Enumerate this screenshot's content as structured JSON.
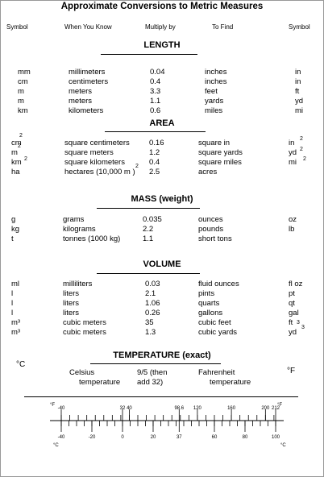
{
  "title": "Approximate Conversions to Metric Measures",
  "headers": {
    "symbol": "Symbol",
    "when_you_know": "When You Know",
    "multiply_by": "Multiply by",
    "to_find": "To Find",
    "symbol_right": "Symbol"
  },
  "sections": {
    "length": {
      "heading": "LENGTH",
      "rows": [
        {
          "sym": "mm",
          "know": "millimeters",
          "mult": "0.04",
          "find": "inches",
          "rsym": "in"
        },
        {
          "sym": "cm",
          "know": "centimeters",
          "mult": "0.4",
          "find": "inches",
          "rsym": "in"
        },
        {
          "sym": "m",
          "know": "meters",
          "mult": "3.3",
          "find": "feet",
          "rsym": "ft"
        },
        {
          "sym": "m",
          "know": "meters",
          "mult": "1.1",
          "find": "yards",
          "rsym": "yd"
        },
        {
          "sym": "km",
          "know": "kilometers",
          "mult": "0.6",
          "find": "miles",
          "rsym": "mi"
        }
      ]
    },
    "area": {
      "heading": "AREA",
      "rows": [
        {
          "sym": "cm",
          "know": "square centimeters",
          "mult": "0.16",
          "find": "square in",
          "rsym": "in"
        },
        {
          "sym": "m",
          "know": "square meters",
          "mult": "1.2",
          "find": "square yards",
          "rsym": "yd"
        },
        {
          "sym": "km",
          "know": "square kilometers",
          "mult": "0.4",
          "find": "square miles",
          "rsym": "mi"
        },
        {
          "sym": "ha",
          "know": "hectares (10,000 m )",
          "mult": "2.5",
          "find": "acres",
          "rsym": ""
        }
      ],
      "sup": "2"
    },
    "mass": {
      "heading": "MASS (weight)",
      "rows": [
        {
          "sym": "g",
          "know": "grams",
          "mult": "0.035",
          "find": "ounces",
          "rsym": "oz"
        },
        {
          "sym": "kg",
          "know": "kilograms",
          "mult": "2.2",
          "find": "pounds",
          "rsym": "lb"
        },
        {
          "sym": "t",
          "know": "tonnes (1000 kg)",
          "mult": "1.1",
          "find": "short tons",
          "rsym": ""
        }
      ]
    },
    "volume": {
      "heading": "VOLUME",
      "rows": [
        {
          "sym": "ml",
          "know": "milliliters",
          "mult": "0.03",
          "find": "fluid ounces",
          "rsym": "fl oz"
        },
        {
          "sym": "l",
          "know": "liters",
          "mult": "2.1",
          "find": "pints",
          "rsym": "pt"
        },
        {
          "sym": "l",
          "know": "liters",
          "mult": "1.06",
          "find": "quarts",
          "rsym": "qt"
        },
        {
          "sym": "l",
          "know": "liters",
          "mult": "0.26",
          "find": "gallons",
          "rsym": "gal"
        },
        {
          "sym": "m³",
          "know": "cubic meters",
          "mult": "35",
          "find": "cubic feet",
          "rsym": "ft"
        },
        {
          "sym": "m³",
          "know": "cubic meters",
          "mult": "1.3",
          "find": "cubic yards",
          "rsym": "yd"
        }
      ],
      "sup": "3"
    },
    "temperature": {
      "heading": "TEMPERATURE (exact)",
      "sym": "°C",
      "know_line1": "Celsius",
      "know_line2": "temperature",
      "mult_line1": "9/5 (then",
      "mult_line2": "add 32)",
      "find_line1": "Fahrenheit",
      "find_line2": "temperature",
      "rsym": "°F"
    }
  },
  "thermometer": {
    "f_unit": "°F",
    "c_unit": "°C",
    "f_ticks": [
      "-40",
      "32",
      "40",
      "98.6",
      "120",
      "160",
      "200",
      "212"
    ],
    "c_ticks": [
      "-40",
      "-20",
      "0",
      "20",
      "37",
      "60",
      "80",
      "100"
    ]
  }
}
